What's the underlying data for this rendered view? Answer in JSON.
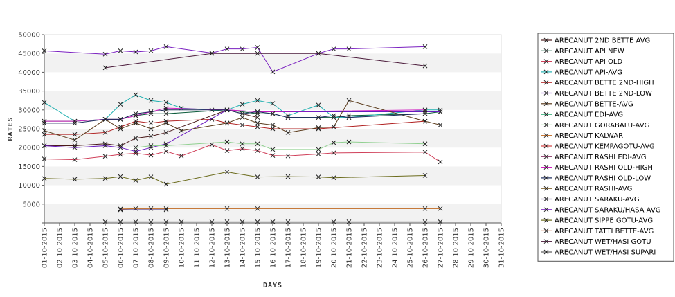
{
  "chart_data": {
    "type": "line",
    "title": "",
    "xlabel": "DAYS",
    "ylabel": "RATES",
    "ylim": [
      0,
      50000
    ],
    "yticks": [
      0,
      5000,
      10000,
      15000,
      20000,
      25000,
      30000,
      35000,
      40000,
      45000,
      50000
    ],
    "ytick_labels": [
      "",
      "5000",
      "10000",
      "15000",
      "20000",
      "25000",
      "30000",
      "35000",
      "40000",
      "45000",
      "50000"
    ],
    "grid": "horizontal alternating bands",
    "legend_position": "right",
    "categories": [
      "01-10-2015",
      "02-10-2015",
      "03-10-2015",
      "04-10-2015",
      "05-10-2015",
      "06-10-2015",
      "07-10-2015",
      "08-10-2015",
      "09-10-2015",
      "10-10-2015",
      "11-10-2015",
      "12-10-2015",
      "13-10-2015",
      "14-10-2015",
      "15-10-2015",
      "16-10-2015",
      "17-10-2015",
      "18-10-2015",
      "19-10-2015",
      "20-10-2015",
      "21-10-2015",
      "22-10-2015",
      "23-10-2015",
      "24-10-2015",
      "25-10-2015",
      "26-10-2015",
      "27-10-2015",
      "28-10-2015",
      "29-10-2015",
      "30-10-2015",
      "31-10-2015"
    ],
    "series": [
      {
        "name": "ARECANUT 2ND BETTE AVG",
        "color": "#4a1a1a",
        "values": [
          20500,
          null,
          20500,
          null,
          21000,
          20500,
          22500,
          23000,
          24000,
          null,
          null,
          null,
          30000,
          null,
          28000,
          null,
          null,
          null,
          null,
          null,
          null,
          null,
          null,
          null,
          null,
          null,
          null,
          null,
          null,
          null,
          null
        ]
      },
      {
        "name": "ARECANUT API NEW",
        "color": "#0a5a3a",
        "values": [
          27000,
          null,
          27000,
          null,
          27500,
          27500,
          28500,
          29000,
          29000,
          null,
          null,
          null,
          30000,
          null,
          29000,
          29000,
          28000,
          null,
          28000,
          28000,
          28500,
          null,
          null,
          null,
          null,
          29000,
          29500,
          null,
          null,
          null,
          null
        ]
      },
      {
        "name": "ARECANUT API OLD",
        "color": "#d0405a",
        "values": [
          17000,
          null,
          16800,
          null,
          17700,
          18200,
          18500,
          18000,
          19000,
          17800,
          null,
          20800,
          19200,
          19700,
          19200,
          17900,
          17800,
          null,
          18300,
          18600,
          null,
          null,
          null,
          null,
          null,
          18800,
          16200,
          null,
          null,
          null,
          null
        ]
      },
      {
        "name": "ARECANUT API-AVG",
        "color": "#20b0b0",
        "values": [
          32000,
          null,
          27000,
          null,
          27500,
          31500,
          34000,
          32500,
          32000,
          30500,
          null,
          30000,
          30000,
          31500,
          32500,
          31700,
          28500,
          null,
          31300,
          28000,
          28000,
          null,
          null,
          null,
          null,
          30000,
          30000,
          null,
          null,
          null,
          null
        ]
      },
      {
        "name": "ARECANUT BETTE 2ND-HIGH",
        "color": "#b02020",
        "values": [
          23500,
          null,
          23500,
          null,
          24000,
          25500,
          27000,
          26500,
          27000,
          null,
          null,
          27500,
          26500,
          26000,
          25500,
          25000,
          null,
          null,
          25000,
          null,
          null,
          null,
          null,
          null,
          null,
          27000,
          null,
          null,
          null,
          null,
          null
        ]
      },
      {
        "name": "ARECANUT BETTE 2ND-LOW",
        "color": "#6a1ac0",
        "values": [
          20500,
          null,
          20000,
          null,
          20500,
          20000,
          19000,
          20000,
          21000,
          null,
          null,
          null,
          30000,
          null,
          29500,
          null,
          null,
          null,
          null,
          null,
          null,
          null,
          null,
          null,
          null,
          29500,
          29500,
          null,
          null,
          null,
          null
        ]
      },
      {
        "name": "ARECANUT BETTE-AVG",
        "color": "#5a3a1a",
        "values": [
          24500,
          null,
          22000,
          null,
          27500,
          25000,
          26500,
          25000,
          26500,
          24500,
          null,
          null,
          26500,
          28000,
          26500,
          26000,
          24000,
          null,
          25300,
          25500,
          32500,
          null,
          null,
          null,
          null,
          27000,
          26000,
          null,
          null,
          null,
          null
        ]
      },
      {
        "name": "ARECANUT EDI-AVG",
        "color": "#10a060",
        "values": [
          null,
          null,
          null,
          null,
          null,
          null,
          null,
          null,
          null,
          null,
          null,
          null,
          null,
          null,
          null,
          null,
          null,
          null,
          null,
          null,
          null,
          null,
          null,
          null,
          null,
          null,
          null,
          null,
          null,
          null,
          null
        ]
      },
      {
        "name": "ARECANUT GORABALU-AVG",
        "color": "#90d090",
        "values": [
          null,
          null,
          null,
          null,
          null,
          null,
          20000,
          20500,
          20500,
          null,
          null,
          null,
          21500,
          21000,
          21000,
          19500,
          null,
          null,
          19500,
          21300,
          21500,
          null,
          null,
          null,
          null,
          21000,
          null,
          null,
          null,
          null,
          null
        ]
      },
      {
        "name": "ARECANUT KALWAR",
        "color": "#c06a20",
        "values": [
          null,
          null,
          null,
          null,
          null,
          3700,
          3800,
          3800,
          3800,
          null,
          null,
          null,
          3800,
          null,
          3800,
          null,
          null,
          null,
          null,
          null,
          null,
          null,
          null,
          null,
          null,
          3800,
          3800,
          null,
          null,
          null,
          null
        ]
      },
      {
        "name": "ARECANUT KEMPAGOTU-AVG",
        "color": "#d04040",
        "values": [
          null,
          null,
          null,
          null,
          null,
          null,
          null,
          null,
          null,
          null,
          null,
          null,
          null,
          null,
          null,
          null,
          null,
          null,
          null,
          null,
          null,
          null,
          null,
          null,
          null,
          null,
          null,
          null,
          null,
          null,
          null
        ]
      },
      {
        "name": "ARECANUT RASHI EDI-AVG",
        "color": "#8a3a6a",
        "values": [
          null,
          null,
          null,
          null,
          null,
          null,
          null,
          null,
          null,
          null,
          null,
          null,
          null,
          null,
          null,
          null,
          null,
          null,
          null,
          null,
          null,
          null,
          null,
          null,
          null,
          null,
          null,
          null,
          null,
          null,
          null
        ]
      },
      {
        "name": "ARECANUT RASHI OLD-HIGH",
        "color": "#d020c0",
        "values": [
          27000,
          null,
          27000,
          null,
          27500,
          27500,
          28500,
          29500,
          30500,
          null,
          null,
          null,
          30000,
          null,
          29500,
          null,
          null,
          null,
          null,
          null,
          null,
          null,
          null,
          null,
          null,
          30000,
          null,
          null,
          null,
          null,
          null
        ]
      },
      {
        "name": "ARECANUT RASHI OLD-LOW",
        "color": "#1a2a5a",
        "values": [
          26500,
          null,
          26500,
          null,
          27500,
          27500,
          29000,
          29500,
          30000,
          null,
          null,
          null,
          30000,
          29000,
          29500,
          29000,
          28000,
          null,
          28000,
          28500,
          28000,
          null,
          null,
          null,
          null,
          29000,
          null,
          null,
          null,
          null,
          null
        ]
      },
      {
        "name": "ARECANUT RASHI-AVG",
        "color": "#7a5a20",
        "values": [
          null,
          null,
          null,
          null,
          null,
          null,
          null,
          null,
          null,
          null,
          null,
          null,
          null,
          null,
          null,
          null,
          null,
          null,
          null,
          null,
          null,
          null,
          null,
          null,
          null,
          null,
          null,
          null,
          null,
          null,
          null
        ]
      },
      {
        "name": "ARECANUT SARAKU-AVG",
        "color": "#3a1a6a",
        "values": [
          null,
          null,
          null,
          null,
          null,
          3500,
          null,
          null,
          3500,
          null,
          null,
          null,
          null,
          null,
          null,
          null,
          null,
          null,
          null,
          null,
          null,
          null,
          null,
          null,
          null,
          null,
          null,
          null,
          null,
          null,
          null
        ]
      },
      {
        "name": "ARECANUT SARAKU/HASA AVG",
        "color": "#7a20c0",
        "values": [
          45700,
          null,
          null,
          null,
          44800,
          45700,
          45400,
          45700,
          46800,
          null,
          null,
          45100,
          46200,
          46200,
          46600,
          40100,
          null,
          null,
          45000,
          46200,
          46200,
          null,
          null,
          null,
          null,
          46800,
          null,
          null,
          null,
          null,
          null
        ]
      },
      {
        "name": "ARECANUT SIPPE GOTU-AVG",
        "color": "#6a6a1a",
        "values": [
          11800,
          null,
          11600,
          null,
          11800,
          12300,
          11300,
          12200,
          10300,
          null,
          null,
          null,
          13500,
          null,
          12200,
          null,
          12300,
          null,
          12200,
          12000,
          null,
          null,
          null,
          null,
          null,
          12600,
          null,
          null,
          null,
          null,
          null
        ]
      },
      {
        "name": "ARECANUT TATTI BETTE-AVG",
        "color": "#c05020",
        "values": [
          null,
          null,
          null,
          null,
          null,
          null,
          null,
          null,
          null,
          null,
          null,
          null,
          null,
          null,
          null,
          null,
          null,
          null,
          null,
          null,
          null,
          null,
          null,
          null,
          null,
          null,
          null,
          null,
          null,
          null,
          null
        ]
      },
      {
        "name": "ARECANUT WET/HASI GOTU",
        "color": "#4a1a3a",
        "values": [
          null,
          null,
          null,
          null,
          41200,
          null,
          null,
          null,
          null,
          null,
          null,
          45000,
          null,
          null,
          45000,
          null,
          null,
          null,
          45000,
          null,
          null,
          null,
          null,
          null,
          null,
          41700,
          null,
          null,
          null,
          null,
          null
        ]
      },
      {
        "name": "ARECANUT WET/HASI SUPARI",
        "color": "#5a5a5a",
        "values": [
          null,
          null,
          null,
          null,
          300,
          300,
          300,
          300,
          300,
          300,
          null,
          300,
          300,
          300,
          300,
          300,
          300,
          null,
          null,
          300,
          300,
          null,
          null,
          null,
          null,
          300,
          300,
          null,
          null,
          null,
          null
        ]
      }
    ]
  }
}
